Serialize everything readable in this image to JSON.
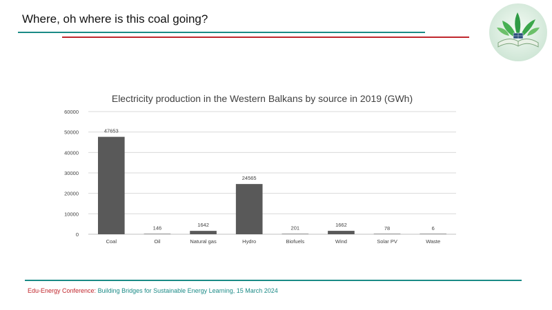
{
  "slide": {
    "title": "Where, oh where is this coal going?"
  },
  "footer": {
    "conference": "Edu-Energy Conference:",
    "subtitle": "Building Bridges for Sustainable Energy Learning, 15 March 2024"
  },
  "colors": {
    "teal": "#1a8a86",
    "red": "#c0252b",
    "bar": "#595959",
    "grid": "#d9d9d9",
    "text": "#404040",
    "leaf_green": "#3aa64a"
  },
  "logo": {
    "icon": "green-book-leaves-logo"
  },
  "chart_data": {
    "type": "bar",
    "title": "Electricity production in  the Western Balkans by source in 2019 (GWh)",
    "categories": [
      "Coal",
      "Oil",
      "Natural gas",
      "Hydro",
      "Biofuels",
      "Wind",
      "Solar PV",
      "Waste"
    ],
    "values": [
      47653,
      146,
      1642,
      24565,
      201,
      1662,
      78,
      6
    ],
    "data_labels": [
      "47653",
      "146",
      "1642",
      "24565",
      "201",
      "1662",
      "78",
      "6"
    ],
    "y_ticks": [
      0,
      10000,
      20000,
      30000,
      40000,
      50000,
      60000
    ],
    "ylim": [
      0,
      60000
    ],
    "xlabel": "",
    "ylabel": "",
    "grid": true,
    "legend": "none"
  }
}
